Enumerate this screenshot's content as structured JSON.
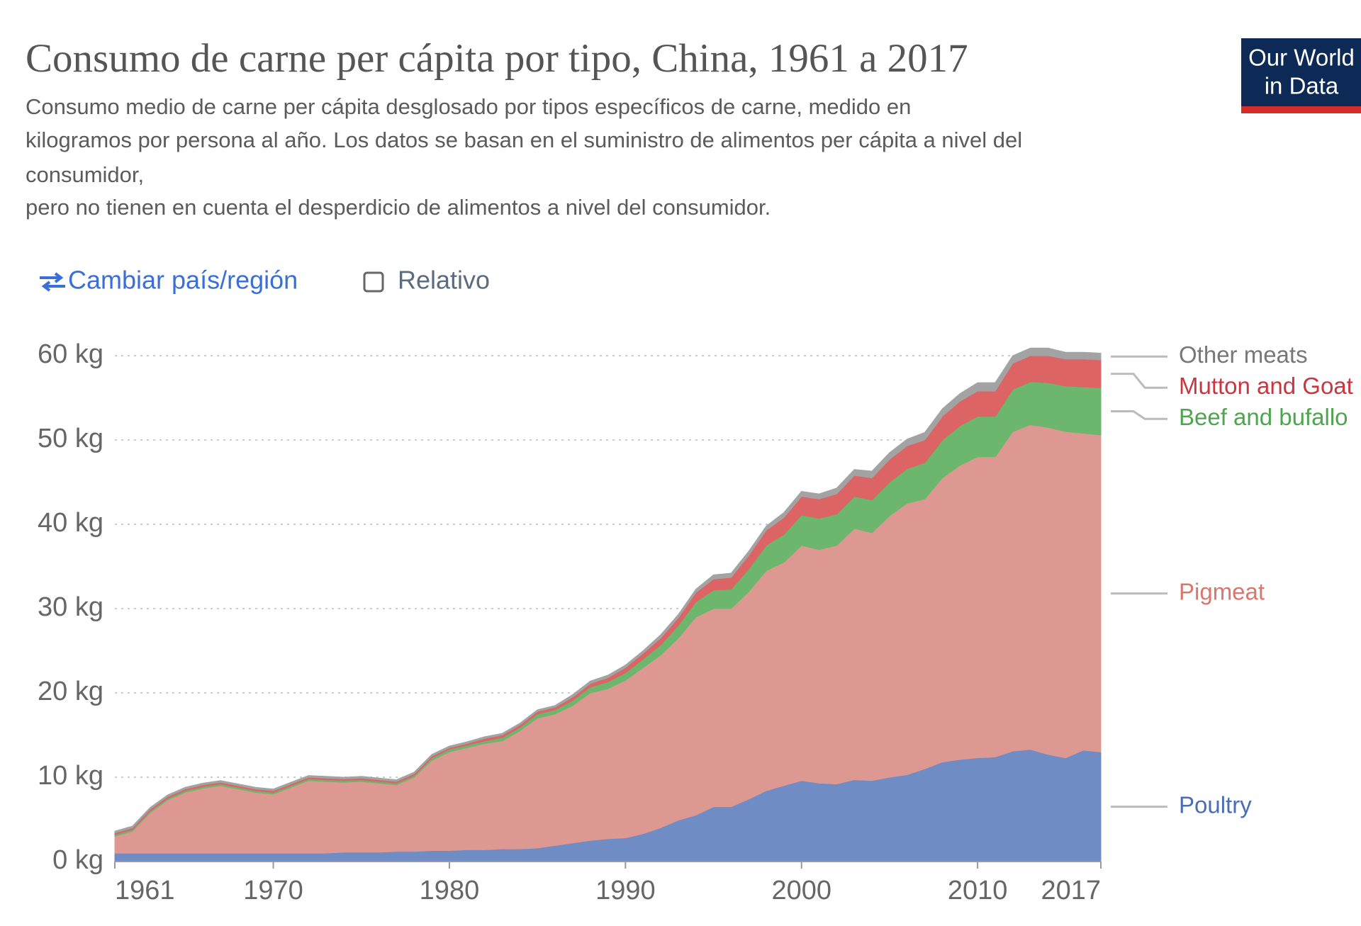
{
  "chart_data": {
    "type": "stacked-area",
    "title": "Consumo de carne per cápita por tipo, China, 1961 a 2017",
    "subtitle": [
      "Consumo medio de carne per cápita desglosado por tipos específicos de carne, medido en",
      "kilogramos por persona al año. Los datos se basan en el suministro de alimentos per cápita a nivel del",
      "consumidor,",
      "pero no tienen en cuenta el desperdicio de alimentos a nivel del consumidor."
    ],
    "x": [
      1961,
      1962,
      1963,
      1964,
      1965,
      1966,
      1967,
      1968,
      1969,
      1970,
      1971,
      1972,
      1973,
      1974,
      1975,
      1976,
      1977,
      1978,
      1979,
      1980,
      1981,
      1982,
      1983,
      1984,
      1985,
      1986,
      1987,
      1988,
      1989,
      1990,
      1991,
      1992,
      1993,
      1994,
      1995,
      1996,
      1997,
      1998,
      1999,
      2000,
      2001,
      2002,
      2003,
      2004,
      2005,
      2006,
      2007,
      2008,
      2009,
      2010,
      2011,
      2012,
      2013,
      2014,
      2015,
      2016,
      2017
    ],
    "series": [
      {
        "name": "Poultry",
        "color": "#6f8cc4",
        "label_color": "#4a6db3",
        "values": [
          1.0,
          1.0,
          1.0,
          1.0,
          1.0,
          1.0,
          1.0,
          1.0,
          1.0,
          1.0,
          1.0,
          1.0,
          1.0,
          1.1,
          1.1,
          1.1,
          1.2,
          1.2,
          1.3,
          1.3,
          1.4,
          1.4,
          1.5,
          1.5,
          1.6,
          1.9,
          2.2,
          2.5,
          2.7,
          2.8,
          3.3,
          4.0,
          4.9,
          5.5,
          6.5,
          6.5,
          7.4,
          8.4,
          9.0,
          9.6,
          9.3,
          9.2,
          9.7,
          9.6,
          10.0,
          10.3,
          11.0,
          11.8,
          12.1,
          12.3,
          12.4,
          13.1,
          13.3,
          12.7,
          12.3,
          13.2,
          13.0
        ]
      },
      {
        "name": "Pigmeat",
        "color": "#dd9892",
        "label_color": "#d9776e",
        "values": [
          2.0,
          2.6,
          4.8,
          6.3,
          7.2,
          7.7,
          8.0,
          7.6,
          7.2,
          7.0,
          7.8,
          8.6,
          8.5,
          8.3,
          8.4,
          8.2,
          7.9,
          8.8,
          10.7,
          11.7,
          12.1,
          12.6,
          12.8,
          14.0,
          15.4,
          15.6,
          16.3,
          17.5,
          17.8,
          18.7,
          19.7,
          20.5,
          21.6,
          23.5,
          23.5,
          23.5,
          24.6,
          26.1,
          26.5,
          27.9,
          27.7,
          28.3,
          29.8,
          29.4,
          31.0,
          32.2,
          32.0,
          33.7,
          34.9,
          35.7,
          35.6,
          37.9,
          38.5,
          38.8,
          38.7,
          37.6,
          37.6
        ]
      },
      {
        "name": "Beef and bufallo",
        "color": "#6cb66e",
        "label_color": "#4ea44f",
        "values": [
          0.2,
          0.2,
          0.2,
          0.2,
          0.2,
          0.2,
          0.2,
          0.2,
          0.2,
          0.2,
          0.2,
          0.2,
          0.2,
          0.2,
          0.2,
          0.2,
          0.2,
          0.2,
          0.3,
          0.3,
          0.3,
          0.3,
          0.4,
          0.4,
          0.5,
          0.5,
          0.6,
          0.7,
          0.8,
          0.9,
          1.0,
          1.2,
          1.5,
          1.8,
          2.2,
          2.3,
          2.7,
          3.0,
          3.3,
          3.6,
          3.7,
          3.7,
          3.8,
          3.9,
          4.0,
          4.1,
          4.3,
          4.5,
          4.7,
          4.8,
          4.8,
          5.0,
          5.1,
          5.3,
          5.4,
          5.5,
          5.6
        ]
      },
      {
        "name": "Mutton and Goat",
        "color": "#dc6464",
        "label_color": "#c8363f",
        "values": [
          0.2,
          0.2,
          0.2,
          0.2,
          0.2,
          0.2,
          0.2,
          0.2,
          0.2,
          0.2,
          0.2,
          0.2,
          0.2,
          0.2,
          0.2,
          0.2,
          0.2,
          0.2,
          0.2,
          0.2,
          0.2,
          0.3,
          0.3,
          0.3,
          0.3,
          0.3,
          0.4,
          0.4,
          0.5,
          0.6,
          0.7,
          0.8,
          0.9,
          1.1,
          1.3,
          1.4,
          1.6,
          1.8,
          2.0,
          2.2,
          2.3,
          2.4,
          2.5,
          2.6,
          2.7,
          2.7,
          2.7,
          2.8,
          2.9,
          3.0,
          3.0,
          3.1,
          3.1,
          3.2,
          3.2,
          3.3,
          3.3
        ]
      },
      {
        "name": "Other meats",
        "color": "#a3a3a3",
        "label_color": "#777777",
        "values": [
          0.2,
          0.2,
          0.2,
          0.2,
          0.2,
          0.2,
          0.2,
          0.2,
          0.2,
          0.2,
          0.2,
          0.2,
          0.2,
          0.2,
          0.2,
          0.2,
          0.2,
          0.2,
          0.2,
          0.2,
          0.2,
          0.2,
          0.2,
          0.2,
          0.2,
          0.2,
          0.3,
          0.3,
          0.3,
          0.3,
          0.3,
          0.4,
          0.4,
          0.4,
          0.5,
          0.5,
          0.5,
          0.5,
          0.6,
          0.6,
          0.6,
          0.7,
          0.7,
          0.8,
          0.8,
          0.8,
          0.9,
          0.9,
          0.9,
          1.0,
          1.0,
          0.9,
          0.9,
          0.9,
          0.8,
          0.8,
          0.8
        ]
      }
    ],
    "xlim": [
      1961,
      2017
    ],
    "xticks": [
      1961,
      1970,
      1980,
      1990,
      2000,
      2010,
      2017
    ],
    "ylim": [
      0,
      60
    ],
    "yticks": [
      {
        "value": 0,
        "label": "0 kg"
      },
      {
        "value": 10,
        "label": "10 kg"
      },
      {
        "value": 20,
        "label": "20 kg"
      },
      {
        "value": 30,
        "label": "30 kg"
      },
      {
        "value": 40,
        "label": "40 kg"
      },
      {
        "value": 50,
        "label": "50 kg"
      },
      {
        "value": 60,
        "label": "60 kg"
      }
    ],
    "grid": true
  },
  "controls": {
    "change": "Cambiar país/región",
    "relative": "Relativo"
  },
  "logo": [
    "Our World",
    "in Data"
  ]
}
